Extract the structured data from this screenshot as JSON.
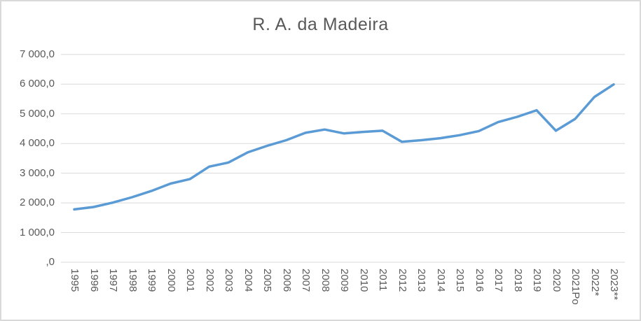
{
  "chart": {
    "title": "R. A. da Madeira"
  },
  "chart_data": {
    "type": "line",
    "title": "R. A. da Madeira",
    "categories": [
      "1995",
      "1996",
      "1997",
      "1998",
      "1999",
      "2000",
      "2001",
      "2002",
      "2003",
      "2004",
      "2005",
      "2006",
      "2007",
      "2008",
      "2009",
      "2010",
      "2011",
      "2012",
      "2013",
      "2014",
      "2015",
      "2016",
      "2017",
      "2018",
      "2019",
      "2020",
      "2021Po",
      "2022*",
      "2023**"
    ],
    "series": [
      {
        "name": "R. A. da Madeira",
        "values": [
          1780,
          1860,
          2010,
          2190,
          2400,
          2650,
          2800,
          3220,
          3360,
          3700,
          3920,
          4110,
          4360,
          4470,
          4340,
          4390,
          4430,
          4060,
          4110,
          4180,
          4280,
          4420,
          4720,
          4900,
          5120,
          4430,
          4830,
          5570,
          5990
        ]
      }
    ],
    "xlabel": "",
    "ylabel": "",
    "ylim": [
      0,
      7000
    ],
    "y_tick_step": 1000,
    "y_tick_labels": [
      ",0",
      "1 000,0",
      "2 000,0",
      "3 000,0",
      "4 000,0",
      "5 000,0",
      "6 000,0",
      "7 000,0"
    ],
    "grid": true,
    "legend_position": "none",
    "colors": {
      "line": "#5B9BD5",
      "gridline": "#d9d9d9",
      "axis_line": "#d9d9d9",
      "text": "#595959",
      "background": "#ffffff",
      "border": "#d9d9d9"
    }
  }
}
